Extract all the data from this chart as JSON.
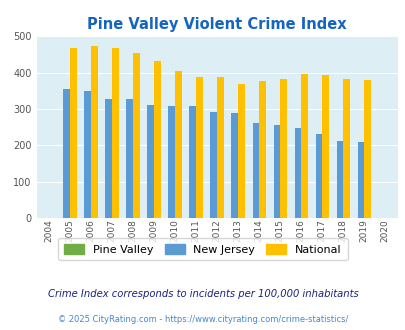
{
  "title": "Pine Valley Violent Crime Index",
  "years": [
    2004,
    2005,
    2006,
    2007,
    2008,
    2009,
    2010,
    2011,
    2012,
    2013,
    2014,
    2015,
    2016,
    2017,
    2018,
    2019,
    2020
  ],
  "pine_valley": [
    0,
    0,
    0,
    0,
    0,
    0,
    0,
    0,
    0,
    0,
    0,
    0,
    0,
    0,
    0,
    0,
    0
  ],
  "new_jersey": [
    0,
    355,
    350,
    328,
    328,
    311,
    309,
    309,
    291,
    288,
    261,
    257,
    247,
    230,
    211,
    208,
    0
  ],
  "national": [
    0,
    469,
    474,
    467,
    455,
    431,
    405,
    387,
    387,
    368,
    376,
    383,
    397,
    394,
    381,
    379,
    0
  ],
  "nj_color": "#5b9bd5",
  "national_color": "#ffc000",
  "pv_color": "#70ad47",
  "plot_bg": "#ddeef5",
  "ylim": [
    0,
    500
  ],
  "yticks": [
    0,
    100,
    200,
    300,
    400,
    500
  ],
  "legend_labels": [
    "Pine Valley",
    "New Jersey",
    "National"
  ],
  "footnote1": "Crime Index corresponds to incidents per 100,000 inhabitants",
  "footnote2": "© 2025 CityRating.com - https://www.cityrating.com/crime-statistics/",
  "title_color": "#1565c0",
  "footnote1_color": "#1a237e",
  "footnote2_color": "#4488cc"
}
